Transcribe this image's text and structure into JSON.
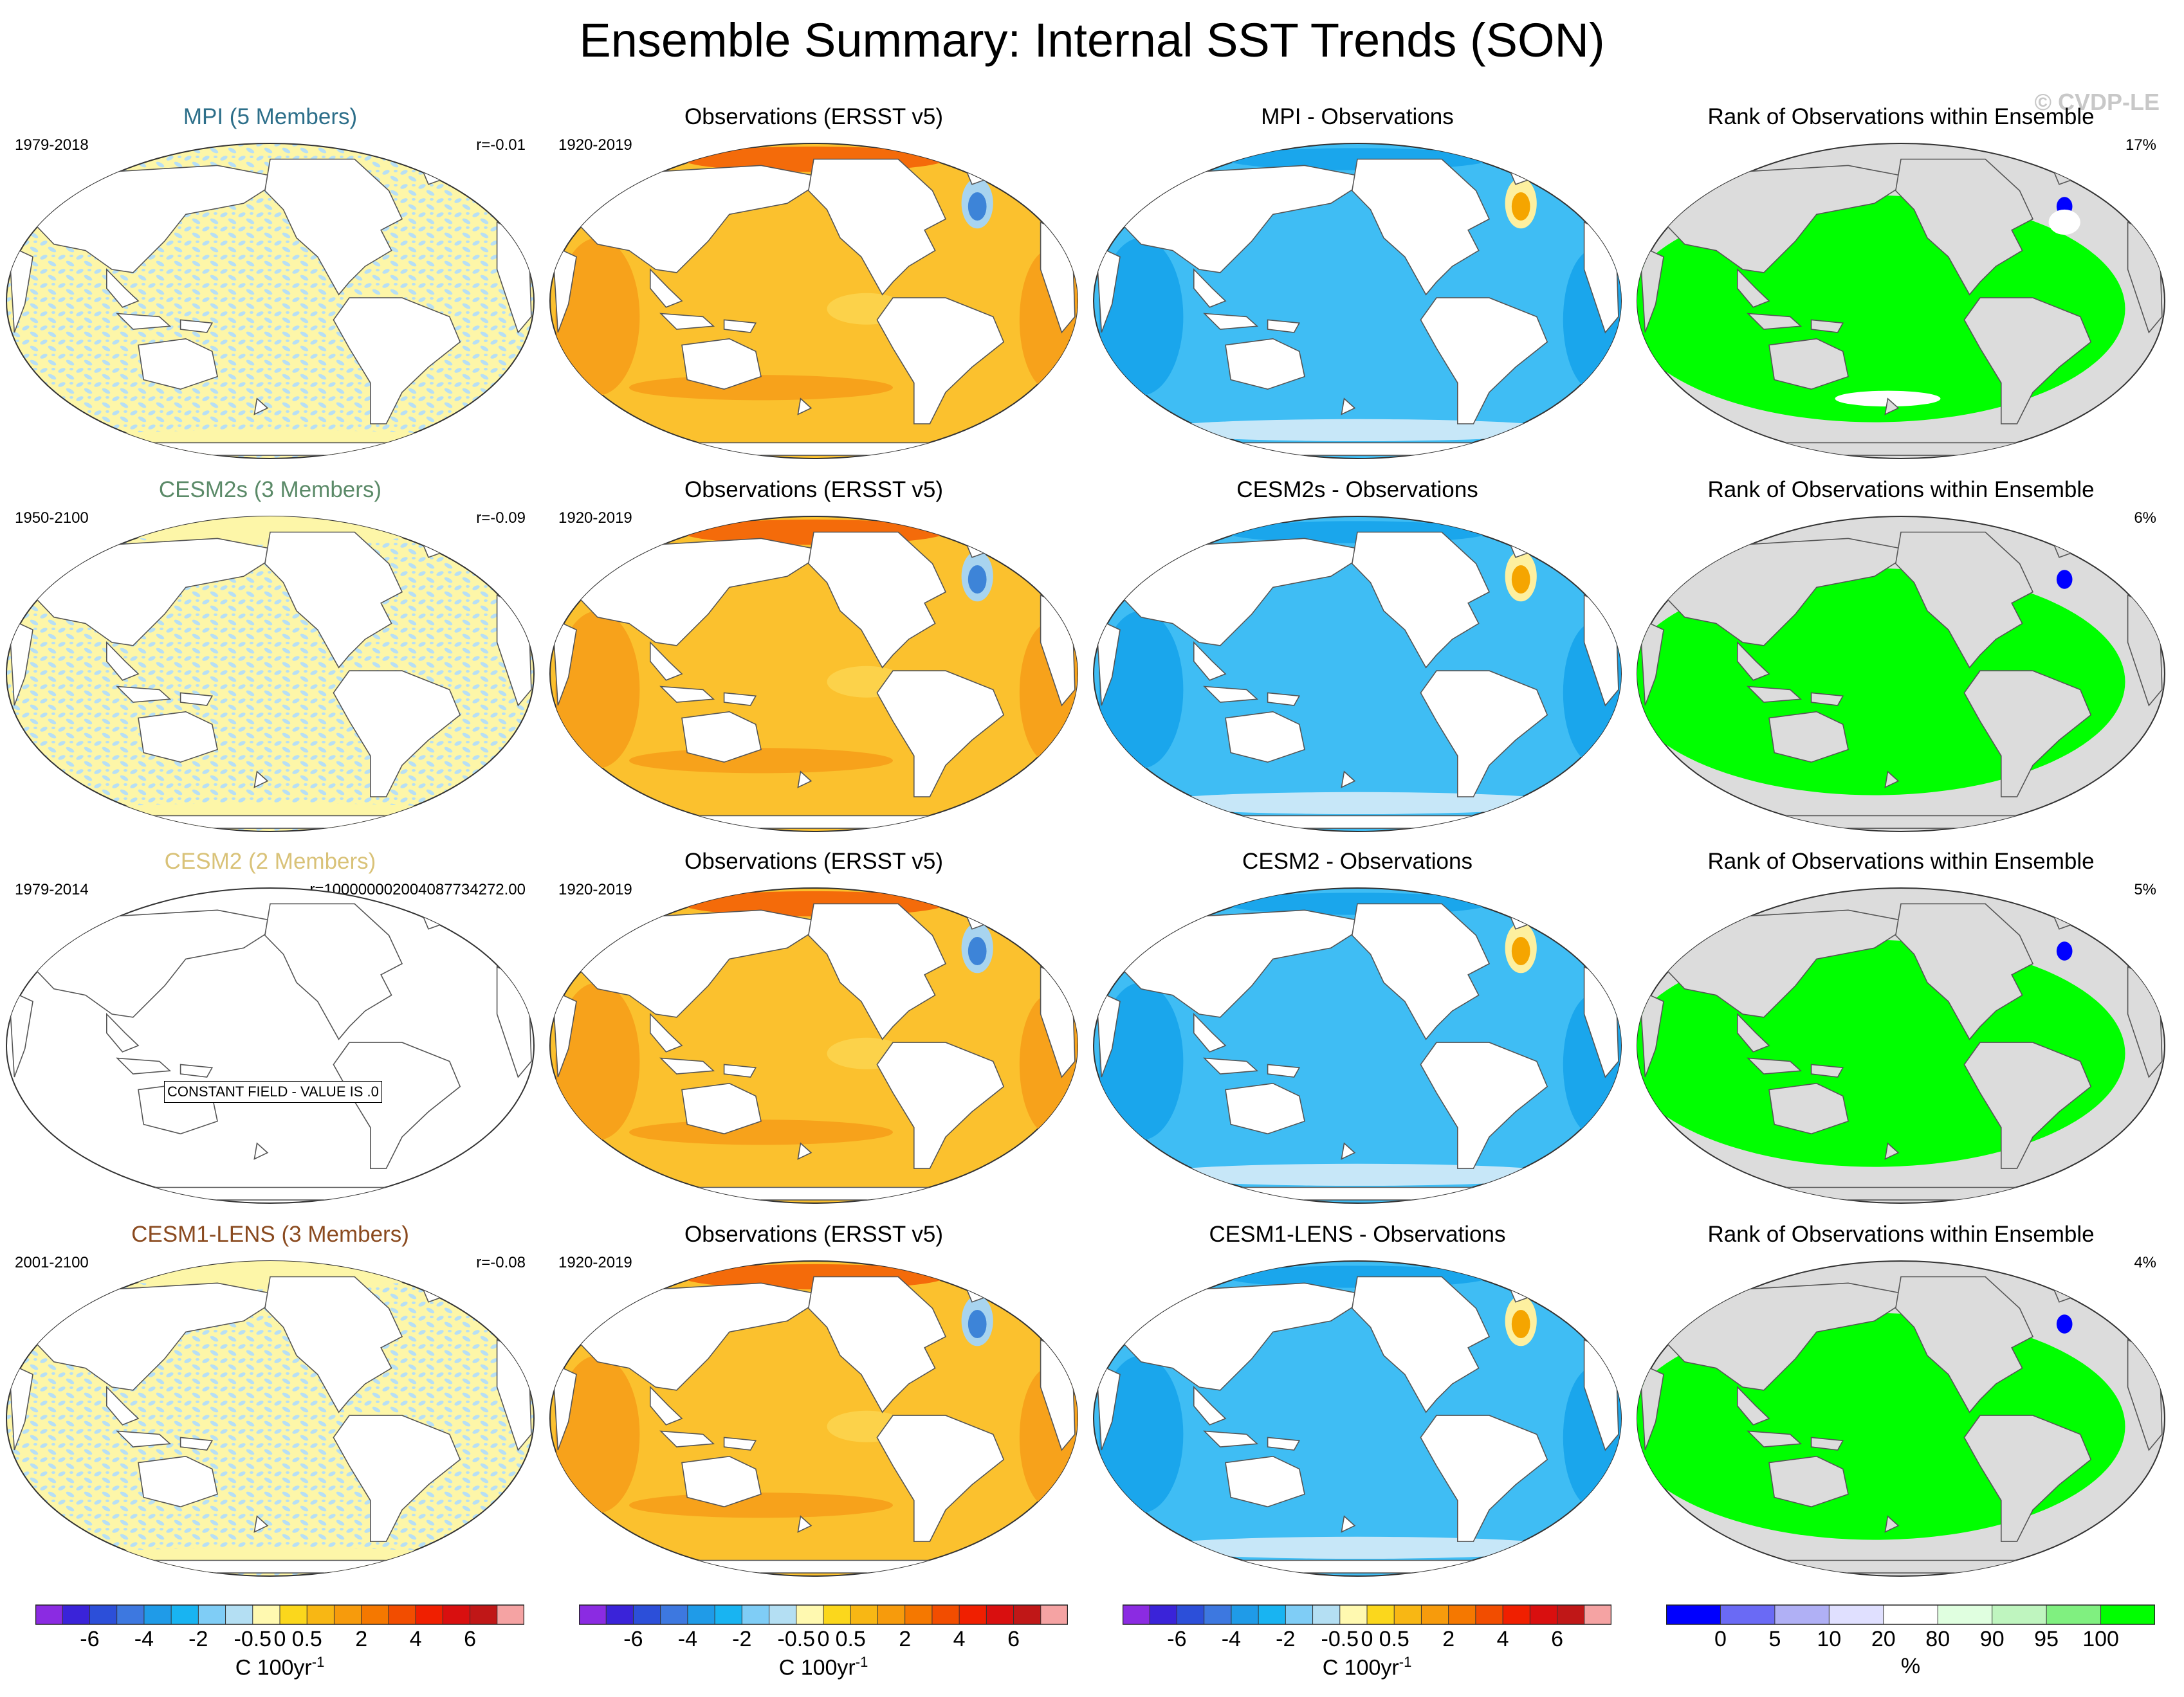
{
  "header": {
    "title": "Ensemble Summary: Internal SST Trends (SON)",
    "watermark": "© CVDP-LE"
  },
  "rows": [
    {
      "model": {
        "title": "MPI (5 Members)",
        "title_color": "#2d6f8a",
        "period": "1979-2018",
        "r": "r=-0.01",
        "pattern": "noise"
      },
      "obs": {
        "title": "Observations (ERSST v5)",
        "period": "1920-2019"
      },
      "diff": {
        "title": "MPI - Observations"
      },
      "rank": {
        "title": "Rank of Observations within Ensemble",
        "pct": "17%"
      }
    },
    {
      "model": {
        "title": "CESM2s (3 Members)",
        "title_color": "#5b8a68",
        "period": "1950-2100",
        "r": "r=-0.09",
        "pattern": "noise"
      },
      "obs": {
        "title": "Observations (ERSST v5)",
        "period": "1920-2019"
      },
      "diff": {
        "title": "CESM2s - Observations"
      },
      "rank": {
        "title": "Rank of Observations within Ensemble",
        "pct": "6%"
      }
    },
    {
      "model": {
        "title": "CESM2 (2 Members)",
        "title_color": "#d9c278",
        "period": "1979-2014",
        "r": "r=100000002004087734272.00",
        "pattern": "constant",
        "constant_label": "CONSTANT FIELD - VALUE IS .0"
      },
      "obs": {
        "title": "Observations (ERSST v5)",
        "period": "1920-2019"
      },
      "diff": {
        "title": "CESM2 - Observations"
      },
      "rank": {
        "title": "Rank of Observations within Ensemble",
        "pct": "5%"
      }
    },
    {
      "model": {
        "title": "CESM1-LENS (3 Members)",
        "title_color": "#8a4a1f",
        "period": "2001-2100",
        "r": "r=-0.08",
        "pattern": "noise"
      },
      "obs": {
        "title": "Observations (ERSST v5)",
        "period": "1920-2019"
      },
      "diff": {
        "title": "CESM1-LENS - Observations"
      },
      "rank": {
        "title": "Rank of Observations within Ensemble",
        "pct": "4%"
      }
    }
  ],
  "colorbars": {
    "trend": {
      "colors": [
        "#8b2be2",
        "#3a23d9",
        "#2c4fd9",
        "#3d78e0",
        "#1f9be8",
        "#18b4f2",
        "#7fcdf6",
        "#b4dff3",
        "#fff9b0",
        "#fbd71c",
        "#f8b714",
        "#f79b0c",
        "#f57800",
        "#f24d00",
        "#f01f00",
        "#d90f0f",
        "#c01717",
        "#f5a3a3"
      ],
      "ticks": [
        "-6",
        "-4",
        "-2",
        "-0.5",
        "0",
        "0.5",
        "2",
        "4",
        "6"
      ],
      "unit": "C 100yr",
      "unit_exp": "-1"
    },
    "rank": {
      "colors": [
        "#0000ff",
        "#6a6af5",
        "#b0b0f5",
        "#e0e0ff",
        "#ffffff",
        "#e0ffe0",
        "#bff5bf",
        "#80f080",
        "#00ff00"
      ],
      "ticks": [
        "0",
        "5",
        "10",
        "20",
        "80",
        "90",
        "95",
        "100"
      ],
      "unit": "%"
    }
  }
}
